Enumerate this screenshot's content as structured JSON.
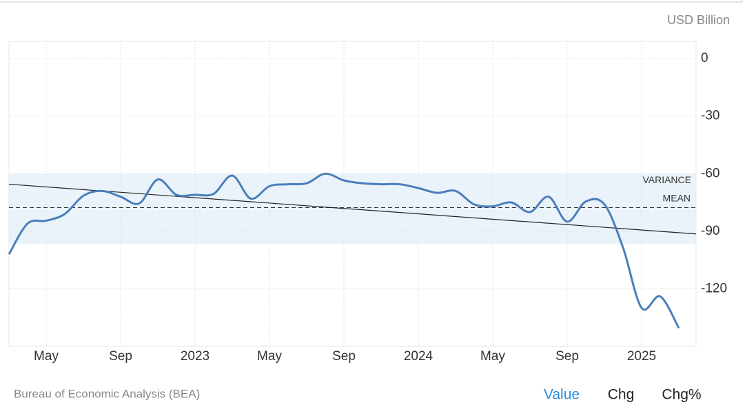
{
  "chart_data": {
    "type": "line",
    "unit": "USD Billion",
    "source": "Bureau of Economic Analysis (BEA)",
    "tabs": [
      "Value",
      "Chg",
      "Chg%"
    ],
    "active_tab": 0,
    "categories": [
      null,
      null,
      "May",
      null,
      null,
      null,
      "Sep",
      null,
      null,
      null,
      "2023",
      null,
      null,
      null,
      "May",
      null,
      null,
      null,
      "Sep",
      null,
      null,
      null,
      "2024",
      null,
      null,
      null,
      "May",
      null,
      null,
      null,
      "Sep",
      null,
      null,
      null,
      "2025",
      null,
      null
    ],
    "series": [
      {
        "color": "#4a7ebb",
        "values": [
          -102,
          -86,
          -84.5,
          -81,
          -71.5,
          -69,
          -72,
          -75.5,
          -63,
          -71,
          -71,
          -70.5,
          -61,
          -73,
          -66.5,
          -65.5,
          -65,
          -60,
          -63.5,
          -65,
          -65.5,
          -65.5,
          -67.5,
          -70,
          -69,
          -76,
          -77,
          -75,
          -80,
          -72,
          -85,
          -74.5,
          -76,
          -98.5,
          -130,
          -124,
          -140.5
        ]
      }
    ],
    "mean": {
      "label": "MEAN",
      "value": -77.7
    },
    "variance": {
      "label": "VARIANCE",
      "range": [
        -96.8,
        -60
      ]
    },
    "trend": {
      "start": -65.5,
      "end": -91.4
    },
    "ylim": [
      -150,
      9
    ],
    "yticks": [
      0,
      -30,
      -60,
      -90,
      -120
    ],
    "grid": true
  }
}
